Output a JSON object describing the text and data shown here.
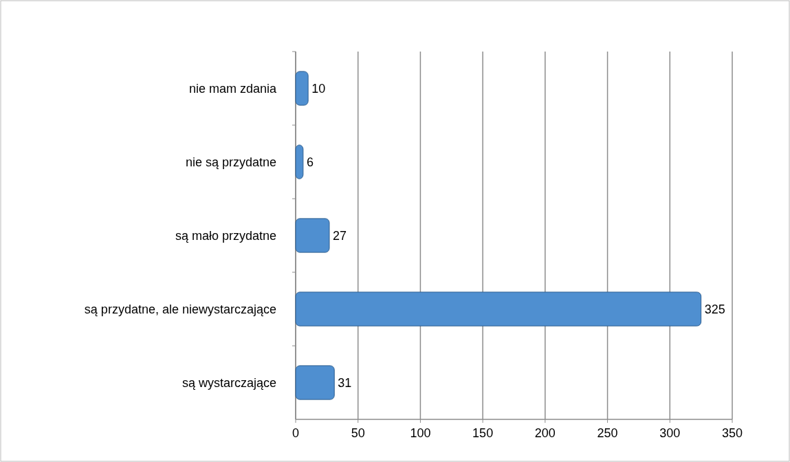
{
  "chart_data": {
    "type": "bar",
    "orientation": "horizontal",
    "categories": [
      "nie mam zdania",
      "nie są przydatne",
      "są mało przydatne",
      "są przydatne, ale niewystarczające",
      "są wystarczające"
    ],
    "values": [
      10,
      6,
      27,
      325,
      31
    ],
    "color": "#4f8fd0",
    "xlim": [
      0,
      350
    ],
    "xticks": [
      0,
      50,
      100,
      150,
      200,
      250,
      300,
      350
    ],
    "grid": "x",
    "data_labels": true
  }
}
